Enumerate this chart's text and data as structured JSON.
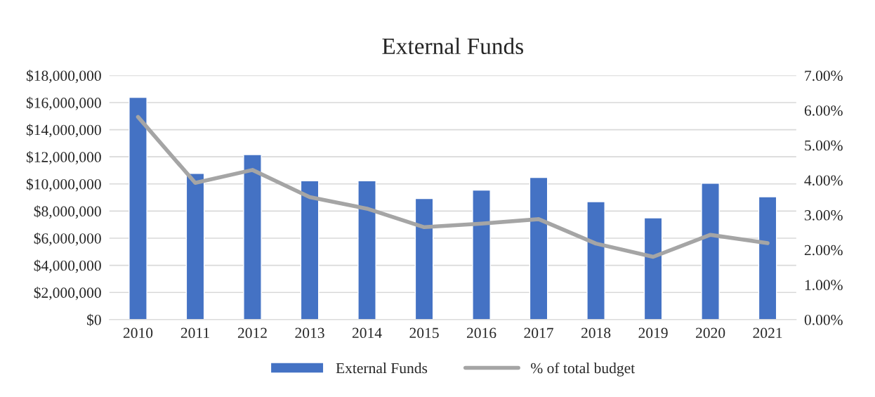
{
  "chart_data": {
    "type": "bar",
    "title": "External Funds",
    "categories": [
      "2010",
      "2011",
      "2012",
      "2013",
      "2014",
      "2015",
      "2016",
      "2017",
      "2018",
      "2019",
      "2020",
      "2021"
    ],
    "series": [
      {
        "name": "External Funds",
        "color": "#4472c4",
        "values": [
          16380000,
          10780000,
          12160000,
          10230000,
          10230000,
          8920000,
          9550000,
          10480000,
          8690000,
          7500000,
          10050000,
          9050000
        ]
      },
      {
        "name": "% of total budget",
        "type": "line",
        "axis": "y2",
        "color": "#a5a5a5",
        "values": [
          5.81,
          3.92,
          4.29,
          3.51,
          3.18,
          2.65,
          2.75,
          2.88,
          2.18,
          1.8,
          2.43,
          2.19
        ]
      }
    ],
    "ylim": [
      0,
      18000000
    ],
    "yticks": [
      {
        "value": 0,
        "label": "$0"
      },
      {
        "value": 2000000,
        "label": "$2,000,000"
      },
      {
        "value": 4000000,
        "label": "$4,000,000"
      },
      {
        "value": 6000000,
        "label": "$6,000,000"
      },
      {
        "value": 8000000,
        "label": "$8,000,000"
      },
      {
        "value": 10000000,
        "label": "$10,000,000"
      },
      {
        "value": 12000000,
        "label": "$12,000,000"
      },
      {
        "value": 14000000,
        "label": "$14,000,000"
      },
      {
        "value": 16000000,
        "label": "$16,000,000"
      },
      {
        "value": 18000000,
        "label": "$18,000,000"
      }
    ],
    "y2lim": [
      0,
      7
    ],
    "y2ticks": [
      {
        "value": 0,
        "label": "0.00%"
      },
      {
        "value": 1,
        "label": "1.00%"
      },
      {
        "value": 2,
        "label": "2.00%"
      },
      {
        "value": 3,
        "label": "3.00%"
      },
      {
        "value": 4,
        "label": "4.00%"
      },
      {
        "value": 5,
        "label": "5.00%"
      },
      {
        "value": 6,
        "label": "6.00%"
      },
      {
        "value": 7,
        "label": "7.00%"
      }
    ],
    "grid": "y",
    "legend": "bottom",
    "marker": "none",
    "line_style": "solid"
  }
}
